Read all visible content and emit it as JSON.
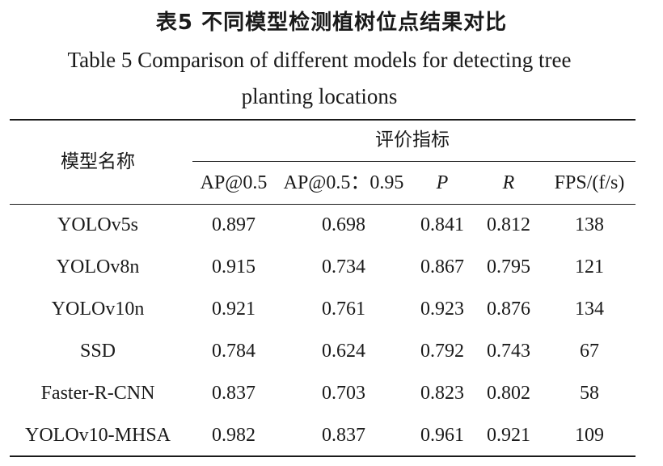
{
  "caption": {
    "chinese": "表5  不同模型检测植树位点结果对比",
    "english_line1": "Table 5  Comparison of different models for detecting tree",
    "english_line2": "planting locations"
  },
  "table": {
    "row_header": "模型名称",
    "group_header": "评价指标",
    "columns": [
      "AP@0.5",
      "AP@0.5：0.95",
      "P",
      "R",
      "FPS/(f/s)"
    ],
    "rows": [
      {
        "model": "YOLOv5s",
        "values": [
          "0.897",
          "0.698",
          "0.841",
          "0.812",
          "138"
        ]
      },
      {
        "model": "YOLOv8n",
        "values": [
          "0.915",
          "0.734",
          "0.867",
          "0.795",
          "121"
        ]
      },
      {
        "model": "YOLOv10n",
        "values": [
          "0.921",
          "0.761",
          "0.923",
          "0.876",
          "134"
        ]
      },
      {
        "model": "SSD",
        "values": [
          "0.784",
          "0.624",
          "0.792",
          "0.743",
          "67"
        ]
      },
      {
        "model": "Faster-R-CNN",
        "values": [
          "0.837",
          "0.703",
          "0.823",
          "0.802",
          "58"
        ]
      },
      {
        "model": "YOLOv10-MHSA",
        "values": [
          "0.982",
          "0.837",
          "0.961",
          "0.921",
          "109"
        ]
      }
    ]
  }
}
